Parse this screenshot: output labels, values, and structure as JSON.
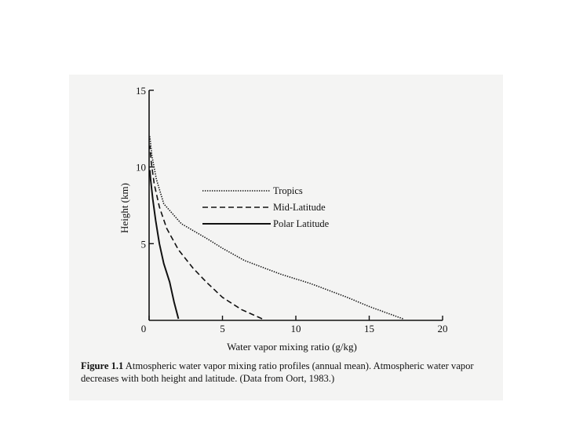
{
  "chart_data": {
    "type": "line",
    "xlabel": "Water vapor mixing ratio (g/kg)",
    "ylabel": "Height (km)",
    "xlim": [
      0,
      20
    ],
    "ylim": [
      0,
      15
    ],
    "x_ticks": [
      "0",
      "5",
      "10",
      "15",
      "20"
    ],
    "y_ticks": [
      "0",
      "5",
      "10",
      "15"
    ],
    "grid": false,
    "legend_position": "upper-center",
    "series": [
      {
        "name": "Tropics",
        "style": "dotted",
        "points": [
          [
            17.3,
            0.1
          ],
          [
            15,
            0.9
          ],
          [
            13.5,
            1.5
          ],
          [
            11,
            2.4
          ],
          [
            9,
            3.0
          ],
          [
            6.5,
            3.9
          ],
          [
            5,
            4.7
          ],
          [
            4,
            5.3
          ],
          [
            2.2,
            6.3
          ],
          [
            1.0,
            7.6
          ],
          [
            0.5,
            9.2
          ],
          [
            0.2,
            10.7
          ],
          [
            0.05,
            12.0
          ]
        ]
      },
      {
        "name": "Mid-Latitude",
        "style": "dashed",
        "points": [
          [
            7.7,
            0.1
          ],
          [
            6.3,
            0.7
          ],
          [
            5.0,
            1.5
          ],
          [
            3.9,
            2.5
          ],
          [
            3.0,
            3.4
          ],
          [
            2.0,
            4.6
          ],
          [
            1.2,
            6.0
          ],
          [
            0.7,
            7.4
          ],
          [
            0.35,
            8.9
          ],
          [
            0.15,
            10.3
          ],
          [
            0.05,
            11.4
          ]
        ]
      },
      {
        "name": "Polar Latitude",
        "style": "solid",
        "points": [
          [
            2.0,
            0.1
          ],
          [
            1.7,
            1.2
          ],
          [
            1.4,
            2.5
          ],
          [
            1.0,
            3.7
          ],
          [
            0.7,
            5.0
          ],
          [
            0.45,
            6.5
          ],
          [
            0.25,
            7.9
          ],
          [
            0.1,
            9.2
          ],
          [
            0.05,
            9.8
          ]
        ]
      }
    ]
  },
  "caption": {
    "label": "Figure 1.1",
    "text": " Atmospheric water vapor mixing ratio profiles (annual mean).  Atmospheric water vapor decreases with both height and latitude.  (Data from Oort, 1983.)"
  }
}
